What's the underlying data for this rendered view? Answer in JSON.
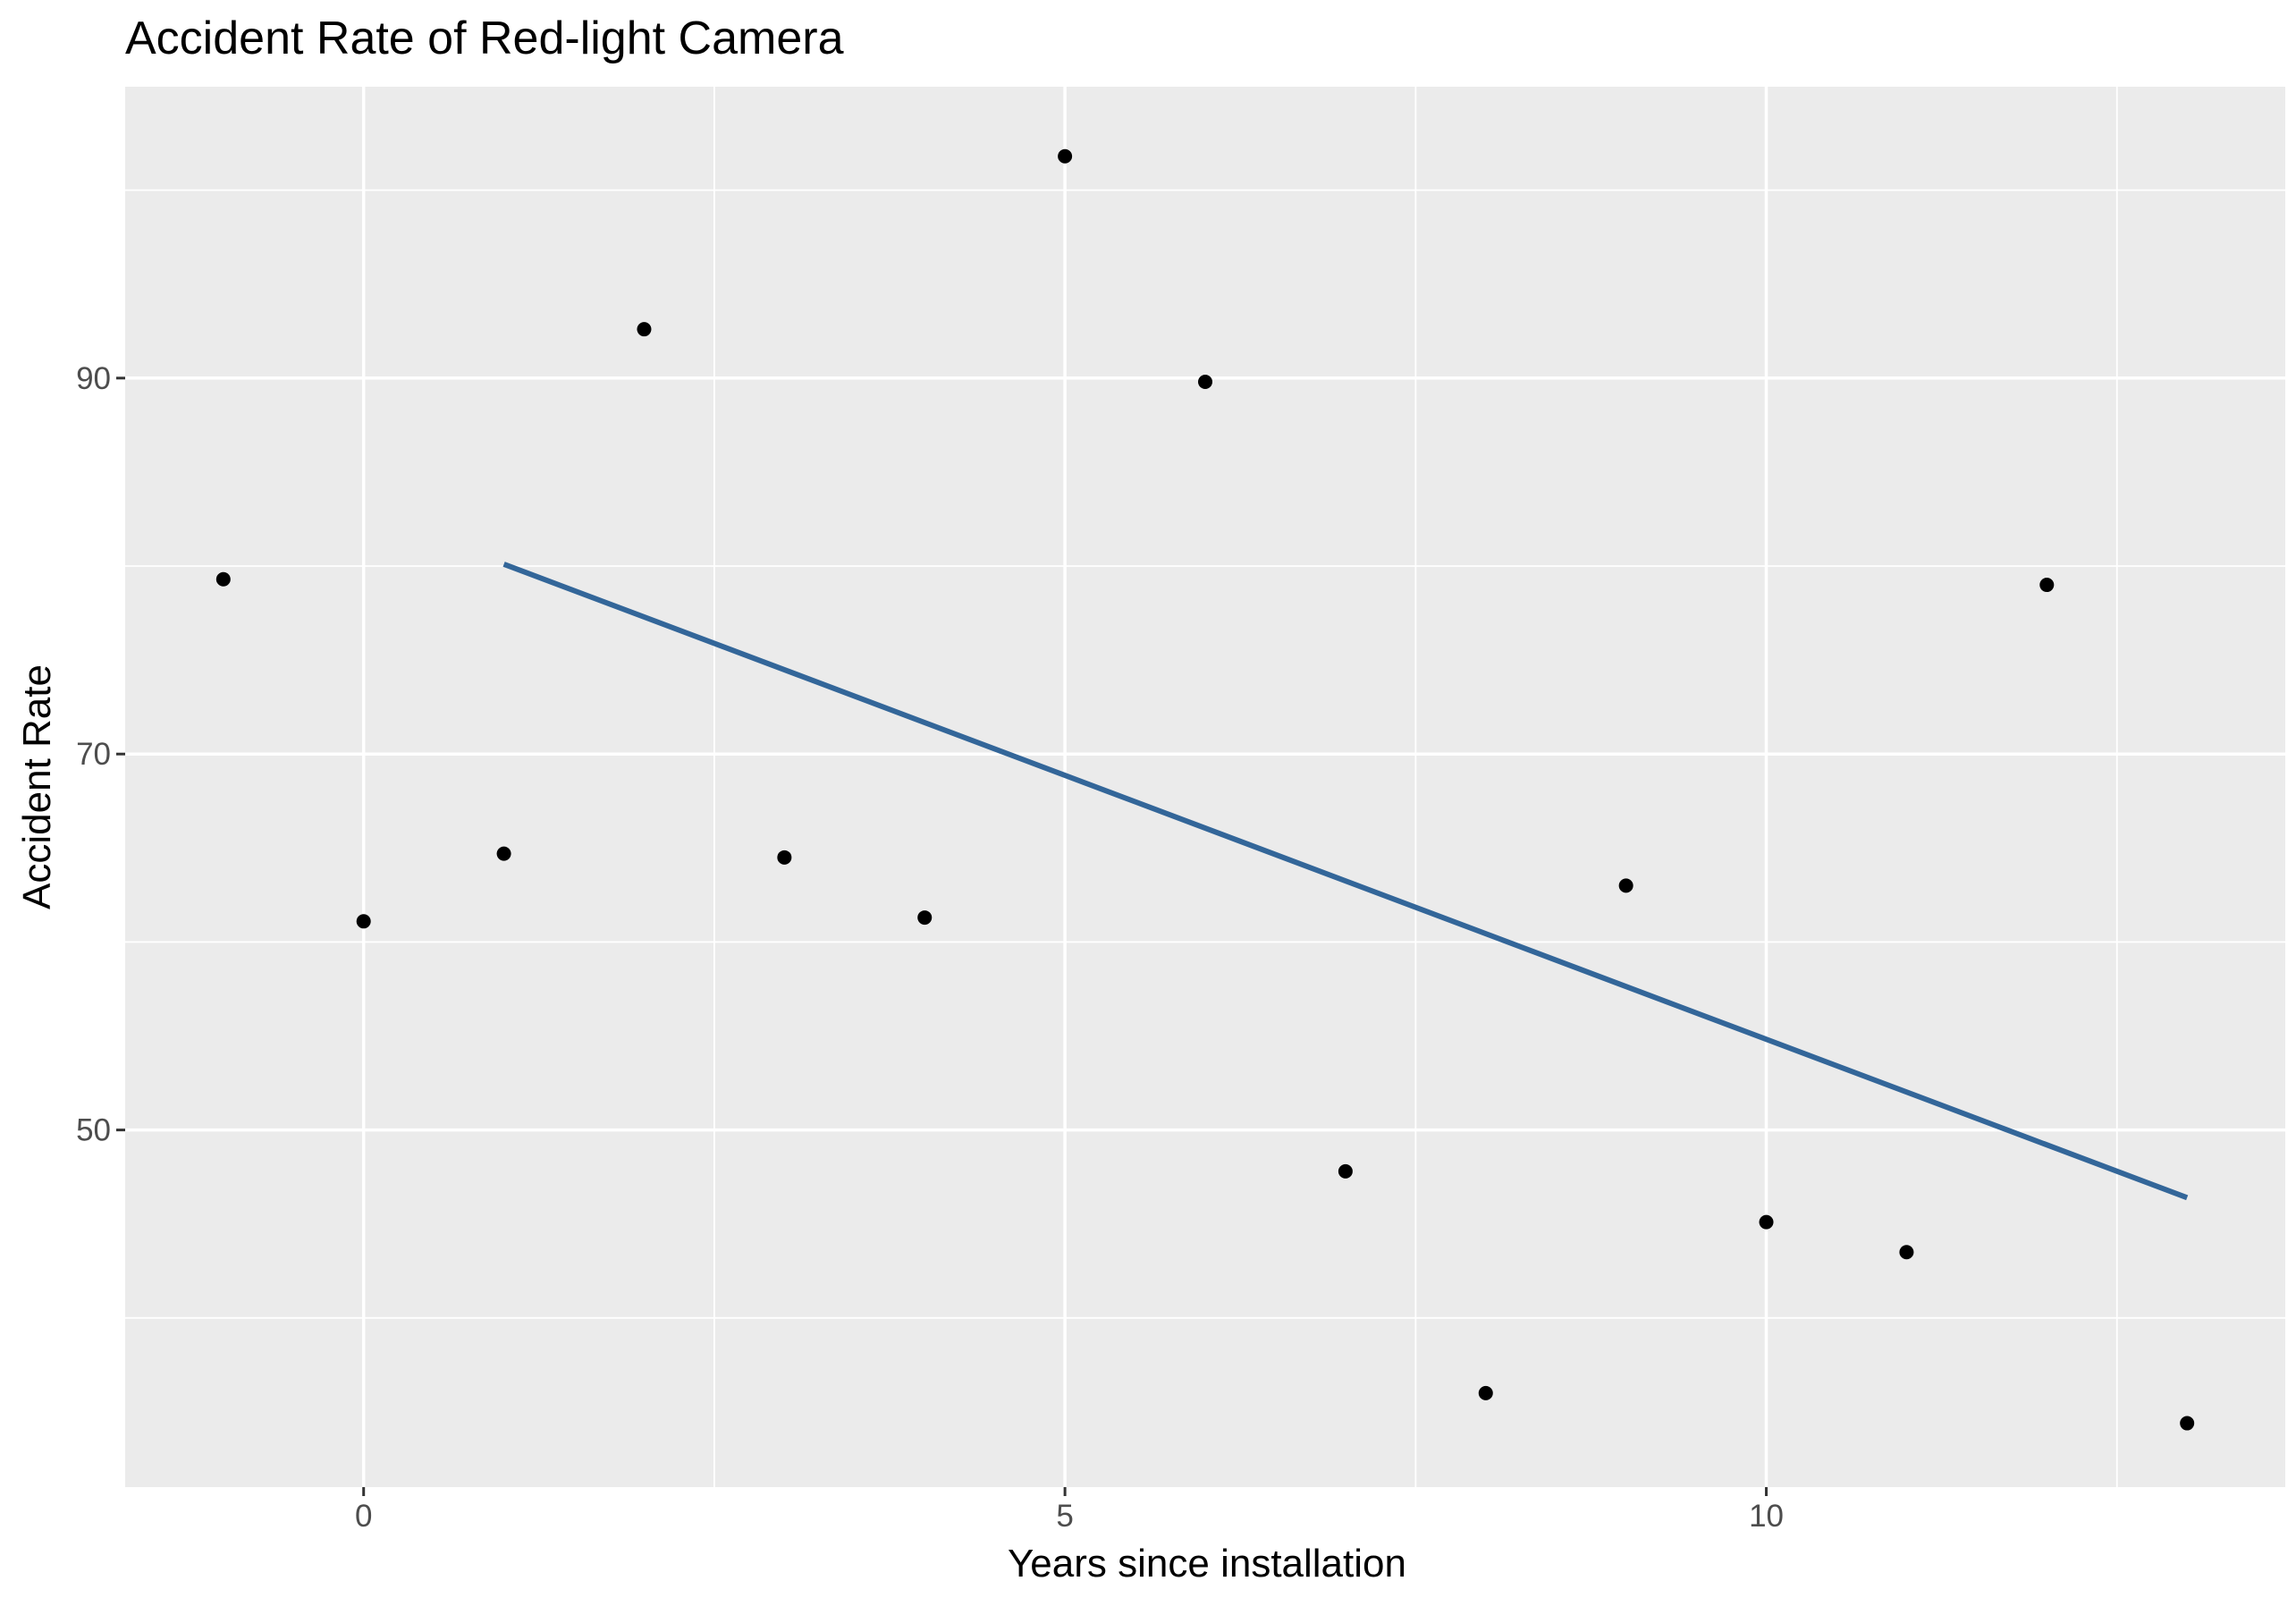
{
  "colors": {
    "panel_background": "#ebebeb",
    "grid": "#ffffff",
    "points": "#000000",
    "trend_line": "#336699",
    "tick_text": "#4d4d4d"
  },
  "chart_data": {
    "type": "scatter",
    "title": "Accident Rate of Red-light Camera",
    "xlabel": "Years since installation",
    "ylabel": "Accident Rate",
    "xlim": [
      -1.7,
      13.7
    ],
    "ylim": [
      31,
      105.5
    ],
    "x_ticks": [
      0,
      5,
      10
    ],
    "x_tick_labels": [
      "0",
      "5",
      "10"
    ],
    "y_ticks": [
      50,
      70,
      90
    ],
    "y_tick_labels": [
      "50",
      "70",
      "90"
    ],
    "grid": true,
    "legend": "none",
    "series": [
      {
        "type": "points",
        "x": [
          -1,
          0,
          1,
          2,
          3,
          4,
          5,
          6,
          7,
          8,
          9,
          10,
          11,
          12,
          13
        ],
        "y": [
          79.3,
          61.1,
          64.7,
          92.6,
          64.5,
          61.3,
          101.8,
          89.8,
          47.8,
          36.0,
          63.0,
          45.1,
          43.5,
          79.0,
          34.4
        ]
      },
      {
        "type": "fitted_line",
        "x": [
          1,
          13
        ],
        "y": [
          80.1,
          46.4
        ]
      }
    ]
  }
}
